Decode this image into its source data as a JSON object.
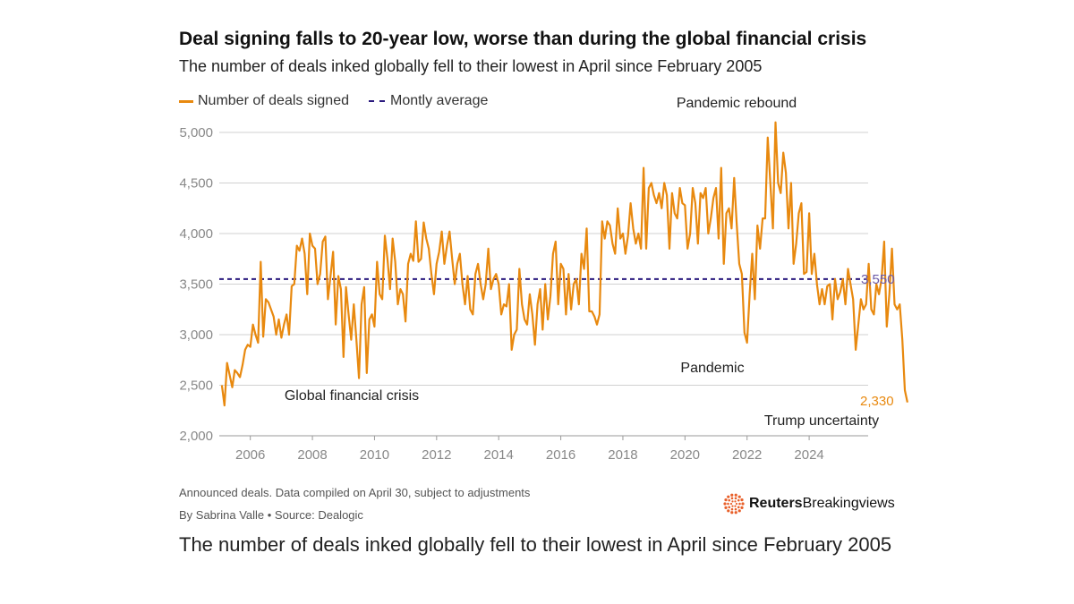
{
  "title": "Deal signing falls to 20-year low, worse than during the global financial crisis",
  "subtitle": "The number of deals inked globally fell to their lowest in April since February 2005",
  "legend": {
    "series_label": "Number of deals signed",
    "average_label": "Montly average"
  },
  "colors": {
    "series": "#e8890f",
    "average": "#2a1a7e",
    "average_label": "#6b5aa8",
    "grid": "#d0d0d0",
    "axis_text": "#888888"
  },
  "footnote": {
    "note": "Announced deals. Data compiled on April 30, subject to adjustments",
    "byline": "By Sabrina Valle • Source: Dealogic"
  },
  "logo": {
    "brand": "Reuters",
    "product": "Breakingviews",
    "icon": "reuters-dot-ring-icon"
  },
  "caption": "The number of deals inked globally fell to their lowest in April since February 2005",
  "chart_data": {
    "type": "line",
    "title": "Deal signing falls to 20-year low, worse than during the global financial crisis",
    "xlabel": "",
    "ylabel": "",
    "xlim": [
      2005.0,
      2025.9
    ],
    "ylim": [
      2000,
      5000
    ],
    "grid": true,
    "x_ticks": [
      2006,
      2008,
      2010,
      2012,
      2014,
      2016,
      2018,
      2020,
      2022,
      2024
    ],
    "x_tick_labels": [
      "2006",
      "2008",
      "2010",
      "2012",
      "2014",
      "2016",
      "2018",
      "2020",
      "2022",
      "2024"
    ],
    "y_ticks": [
      2000,
      2500,
      3000,
      3500,
      4000,
      4500,
      5000
    ],
    "y_tick_labels": [
      "2,000",
      "2,500",
      "3,000",
      "3,500",
      "4,000",
      "4,500",
      "5,000"
    ],
    "average": {
      "name": "Montly average",
      "value": 3550,
      "label": "3,550"
    },
    "end_label": {
      "value": 2330,
      "label": "2,330"
    },
    "annotations": [
      {
        "text": "Pandemic rebound",
        "x": 2020.5,
        "y": 5300
      },
      {
        "text": "Global financial crisis",
        "x": 2008.0,
        "y": 2400
      },
      {
        "text": "Pandemic",
        "x": 2020.6,
        "y": 2530
      },
      {
        "text": "Trump uncertainty",
        "x": 2023.0,
        "y": 2250
      }
    ],
    "series": [
      {
        "name": "Number of deals signed",
        "start": 2005.0833,
        "step_months": 1,
        "values": [
          2500,
          2300,
          2720,
          2600,
          2480,
          2650,
          2620,
          2580,
          2700,
          2850,
          2900,
          2880,
          3100,
          3000,
          2920,
          3720,
          2980,
          3350,
          3320,
          3250,
          3180,
          3000,
          3150,
          2970,
          3100,
          3200,
          3000,
          3480,
          3500,
          3880,
          3830,
          3950,
          3800,
          3400,
          4000,
          3880,
          3850,
          3500,
          3600,
          3920,
          3970,
          3350,
          3580,
          3820,
          3100,
          3580,
          3450,
          2780,
          3470,
          3200,
          2950,
          3300,
          2950,
          2570,
          3300,
          3470,
          2620,
          3150,
          3200,
          3080,
          3720,
          3400,
          3350,
          3980,
          3750,
          3450,
          3950,
          3720,
          3300,
          3450,
          3400,
          3130,
          3700,
          3800,
          3730,
          4120,
          3720,
          3750,
          4110,
          3950,
          3850,
          3600,
          3400,
          3700,
          3820,
          4020,
          3700,
          3880,
          4020,
          3750,
          3500,
          3700,
          3800,
          3500,
          3300,
          3580,
          3250,
          3200,
          3600,
          3700,
          3500,
          3350,
          3500,
          3850,
          3450,
          3550,
          3600,
          3500,
          3200,
          3300,
          3280,
          3500,
          2850,
          3000,
          3050,
          3650,
          3300,
          3150,
          3100,
          3400,
          3200,
          2900,
          3300,
          3450,
          3050,
          3500,
          3150,
          3380,
          3800,
          3920,
          3300,
          3700,
          3650,
          3200,
          3600,
          3250,
          3500,
          3550,
          3300,
          3800,
          3650,
          4050,
          3230,
          3230,
          3180,
          3100,
          3200,
          4120,
          3950,
          4120,
          4080,
          3900,
          3800,
          4250,
          3950,
          4000,
          3800,
          3980,
          4300,
          4050,
          3900,
          4000,
          3850,
          4650,
          3850,
          4450,
          4500,
          4380,
          4300,
          4400,
          4250,
          4500,
          4380,
          3850,
          4400,
          4200,
          4150,
          4450,
          4300,
          4280,
          3850,
          4000,
          4450,
          4300,
          3900,
          4400,
          4350,
          4450,
          4000,
          4150,
          4350,
          4450,
          3950,
          4650,
          3700,
          4200,
          4250,
          4050,
          4550,
          4100,
          3700,
          3600,
          3020,
          2920,
          3400,
          3800,
          3350,
          4080,
          3850,
          4150,
          4150,
          4950,
          4500,
          4050,
          5100,
          4500,
          4400,
          4800,
          4600,
          4050,
          4500,
          3700,
          3900,
          4200,
          4300,
          3600,
          3620,
          4200,
          3600,
          3800,
          3500,
          3300,
          3450,
          3300,
          3480,
          3500,
          3150,
          3550,
          3350,
          3420,
          3550,
          3300,
          3650,
          3500,
          3350,
          2850,
          3100,
          3350,
          3250,
          3300,
          3700,
          3250,
          3200,
          3500,
          3400,
          3550,
          3920,
          3080,
          3400,
          3850,
          3300,
          3250,
          3300,
          2950,
          2450,
          2330
        ]
      }
    ]
  }
}
